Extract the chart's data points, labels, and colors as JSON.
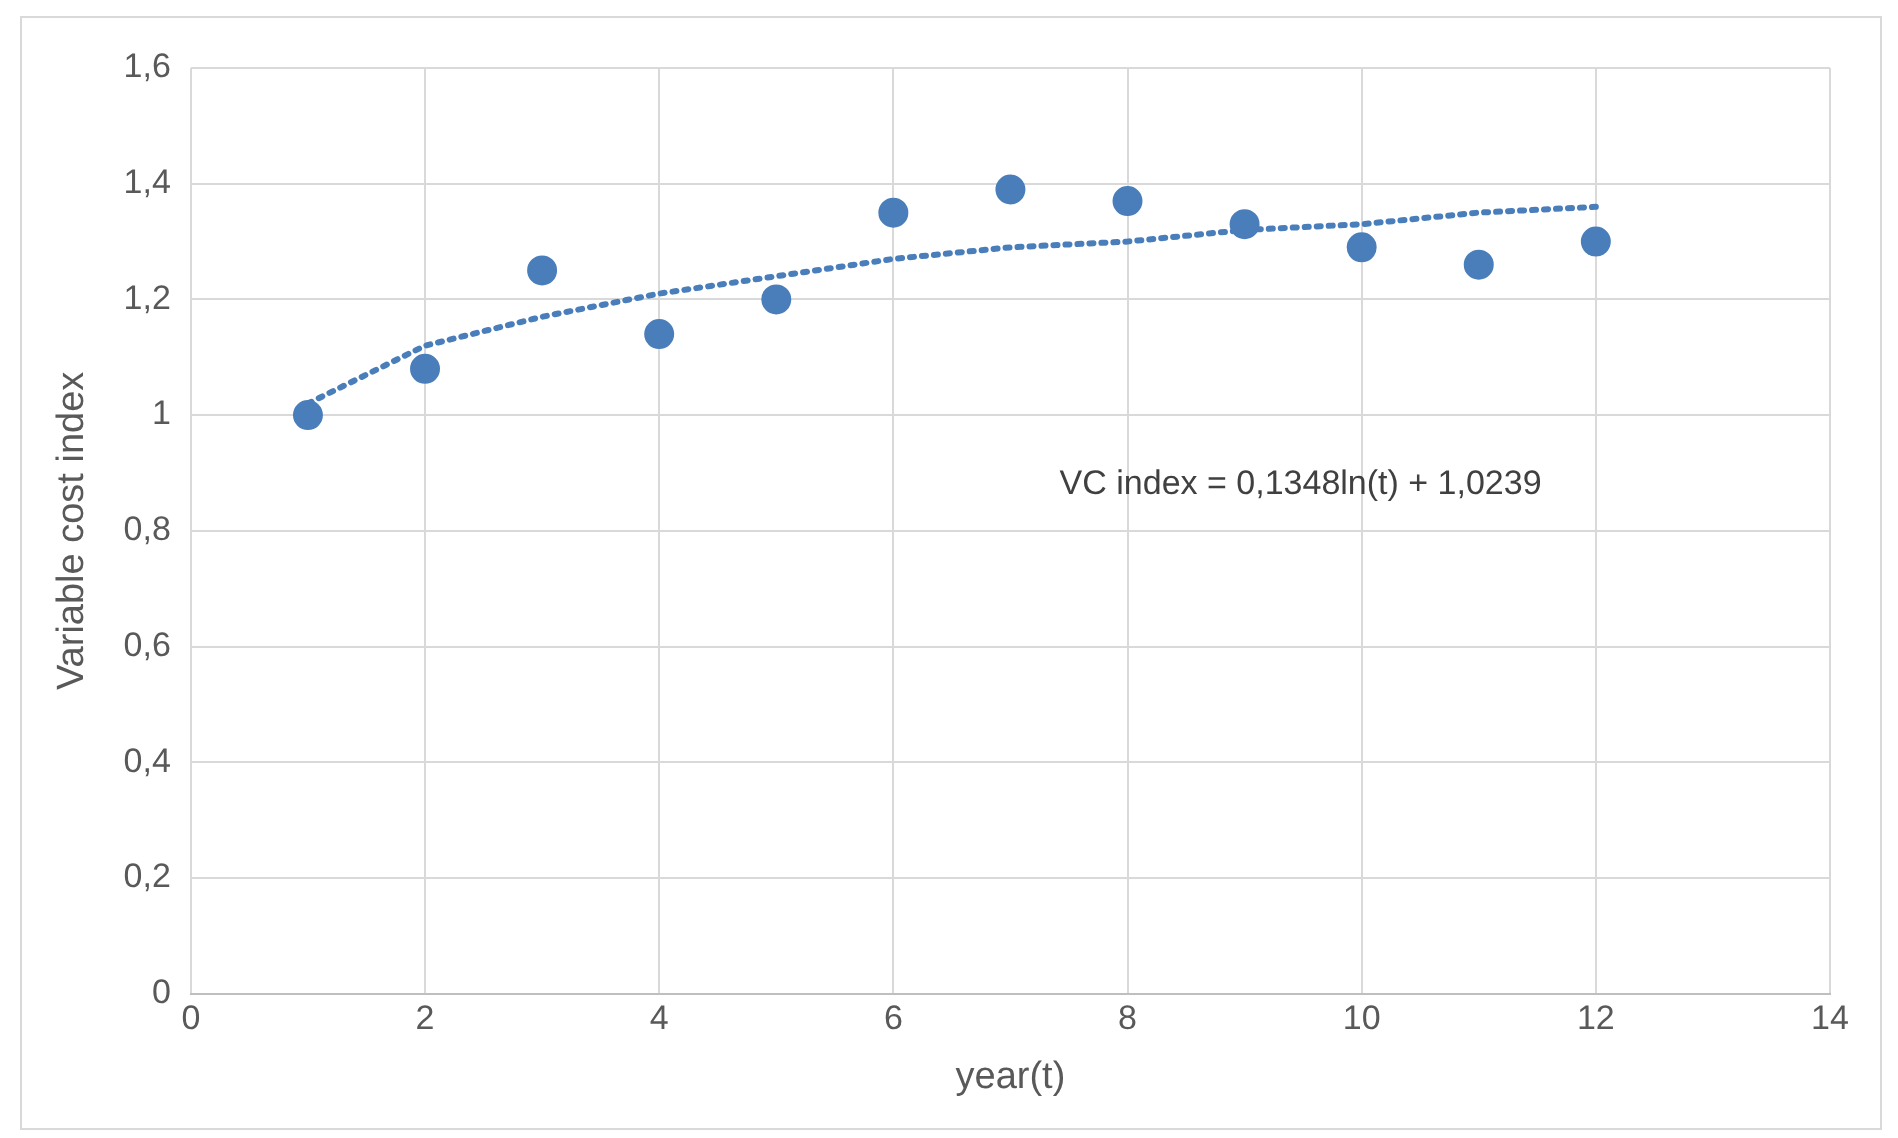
{
  "chart_data": {
    "type": "scatter",
    "xlabel": "year(t)",
    "ylabel": "Variable cost index",
    "annotations": [
      "VC index = 0,1348ln(t) + 1,0239"
    ],
    "xlim": [
      0,
      14
    ],
    "xticks": [
      0,
      2,
      4,
      6,
      8,
      10,
      12,
      14
    ],
    "ylim": [
      0,
      1.6
    ],
    "yticks": [
      0,
      {
        "value": 0.2,
        "label": "0,2"
      },
      {
        "value": 0.4,
        "label": "0,4"
      },
      {
        "value": 0.6,
        "label": "0,6"
      },
      {
        "value": 0.8,
        "label": "0,8"
      },
      1,
      {
        "value": 1.2,
        "label": "1,2"
      },
      {
        "value": 1.4,
        "label": "1,4"
      },
      {
        "value": 1.6,
        "label": "1,6"
      }
    ],
    "grid": true,
    "legend": false,
    "series": [
      {
        "type": "scatter",
        "color": "#4a7ebb",
        "marker": "circle",
        "x": [
          1,
          2,
          3,
          4,
          5,
          6,
          7,
          8,
          9,
          10,
          11,
          12
        ],
        "values": [
          1.0,
          1.08,
          1.25,
          1.14,
          1.2,
          1.35,
          1.39,
          1.37,
          1.33,
          1.29,
          1.26,
          1.3
        ]
      },
      {
        "type": "line",
        "color": "#4a7ebb",
        "marker": "none",
        "line_style": "dotted",
        "x": [
          1,
          2,
          3,
          4,
          5,
          6,
          7,
          8,
          9,
          10,
          11,
          12
        ],
        "values": [
          1.02,
          1.12,
          1.17,
          1.21,
          1.24,
          1.27,
          1.29,
          1.3,
          1.32,
          1.33,
          1.35,
          1.36
        ]
      }
    ]
  }
}
